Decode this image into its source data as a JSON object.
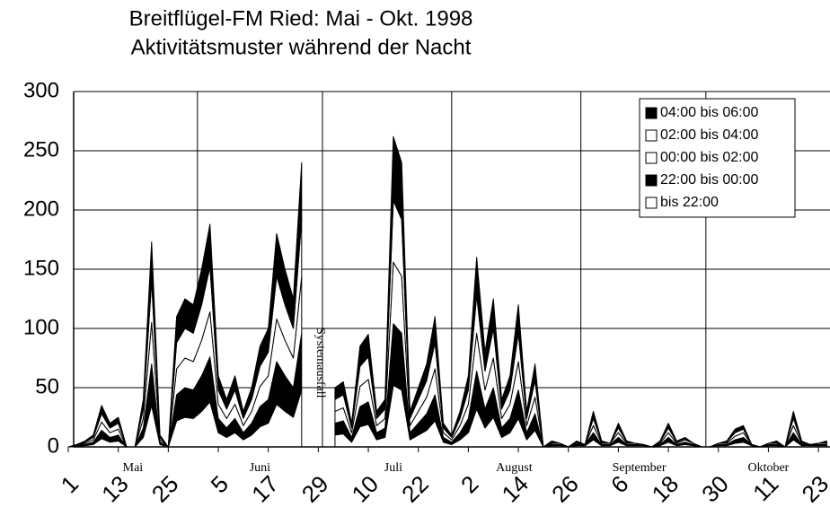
{
  "chart_data": {
    "type": "stacked_area",
    "title": "Breitflügel-FM Ried: Mai - Okt. 1998",
    "subtitle": "Aktivitätsmuster während der Nacht",
    "annotation": "Systemausfall",
    "grid": true,
    "legend": "upper right",
    "xlim": [
      0,
      183
    ],
    "ylim": [
      0,
      300
    ],
    "yticks": [
      0,
      50,
      100,
      150,
      200,
      250,
      300
    ],
    "xticks": [
      {
        "value": 0,
        "label": "1"
      },
      {
        "value": 12,
        "label": "13"
      },
      {
        "value": 24,
        "label": "25"
      },
      {
        "value": 36,
        "label": "5"
      },
      {
        "value": 48,
        "label": "17"
      },
      {
        "value": 60,
        "label": "29"
      },
      {
        "value": 72,
        "label": "10"
      },
      {
        "value": 84,
        "label": "22"
      },
      {
        "value": 96,
        "label": "2"
      },
      {
        "value": 108,
        "label": "14"
      },
      {
        "value": 120,
        "label": "26"
      },
      {
        "value": 132,
        "label": "6"
      },
      {
        "value": 144,
        "label": "18"
      },
      {
        "value": 156,
        "label": "30"
      },
      {
        "value": 168,
        "label": "11"
      },
      {
        "value": 180,
        "label": "23"
      }
    ],
    "month_labels": [
      {
        "value": 15.5,
        "label": "Mai"
      },
      {
        "value": 46,
        "label": "Juni"
      },
      {
        "value": 78,
        "label": "Juli"
      },
      {
        "value": 107,
        "label": "August"
      },
      {
        "value": 137,
        "label": "September"
      },
      {
        "value": 168,
        "label": "Oktober"
      }
    ],
    "xgrid": [
      31,
      61,
      92,
      123,
      153
    ],
    "x": [
      0,
      2,
      4,
      6,
      8,
      10,
      12,
      14,
      16,
      18,
      20,
      22,
      24,
      26,
      28,
      30,
      32,
      34,
      36,
      38,
      40,
      42,
      44,
      46,
      48,
      50,
      52,
      54,
      56,
      58,
      60,
      62,
      64,
      66,
      68,
      70,
      72,
      74,
      76,
      78,
      80,
      82,
      84,
      86,
      88,
      90,
      92,
      94,
      96,
      98,
      100,
      102,
      104,
      106,
      108,
      110,
      112,
      114,
      116,
      118,
      120,
      122,
      124,
      126,
      128,
      130,
      132,
      134,
      136,
      138,
      140,
      142,
      144,
      146,
      148,
      150,
      152,
      154,
      156,
      158,
      160,
      162,
      164,
      166,
      168,
      170,
      172,
      174,
      176,
      178,
      180,
      182
    ],
    "series": [
      {
        "name": "04:00 bis 06:00",
        "color": "#000000",
        "values": [
          0,
          2,
          1,
          2,
          7,
          4,
          5,
          0,
          0,
          8,
          33,
          2,
          0,
          22,
          25,
          24,
          30,
          36,
          12,
          8,
          12,
          6,
          10,
          17,
          20,
          36,
          30,
          25,
          48,
          null,
          null,
          null,
          10,
          11,
          4,
          17,
          19,
          6,
          8,
          54,
          48,
          6,
          10,
          14,
          22,
          4,
          2,
          6,
          12,
          32,
          16,
          25,
          8,
          12,
          24,
          6,
          14,
          0,
          1,
          0,
          0,
          1,
          0,
          6,
          1,
          0,
          4,
          1,
          0,
          0,
          0,
          1,
          4,
          1,
          1,
          0,
          0,
          0,
          0,
          1,
          3,
          3,
          0,
          0,
          0,
          1,
          0,
          6,
          1,
          0,
          0,
          1
        ]
      },
      {
        "name": "02:00 bis 04:00",
        "color": "#ffffff",
        "values": [
          0,
          0,
          1,
          2,
          7,
          4,
          5,
          0,
          0,
          8,
          35,
          2,
          0,
          22,
          25,
          24,
          30,
          38,
          12,
          8,
          12,
          6,
          10,
          17,
          20,
          36,
          30,
          25,
          48,
          null,
          null,
          null,
          10,
          11,
          4,
          17,
          19,
          6,
          8,
          52,
          48,
          6,
          10,
          14,
          22,
          4,
          2,
          6,
          12,
          32,
          16,
          25,
          8,
          12,
          24,
          6,
          14,
          0,
          1,
          0,
          0,
          1,
          0,
          6,
          1,
          0,
          4,
          1,
          0,
          0,
          0,
          1,
          4,
          1,
          1,
          0,
          0,
          0,
          0,
          1,
          3,
          3,
          0,
          0,
          0,
          1,
          0,
          6,
          1,
          0,
          0,
          1
        ]
      },
      {
        "name": "00:00 bis 02:00",
        "color": "#ffffff",
        "values": [
          0,
          0,
          1,
          2,
          7,
          4,
          5,
          0,
          0,
          8,
          35,
          2,
          0,
          22,
          25,
          24,
          30,
          38,
          12,
          8,
          12,
          6,
          10,
          17,
          20,
          36,
          30,
          25,
          48,
          null,
          null,
          null,
          10,
          11,
          4,
          17,
          19,
          6,
          8,
          52,
          48,
          6,
          10,
          14,
          22,
          4,
          2,
          6,
          12,
          32,
          16,
          25,
          8,
          12,
          24,
          6,
          14,
          0,
          1,
          1,
          0,
          1,
          0,
          6,
          1,
          1,
          4,
          1,
          1,
          0,
          0,
          1,
          4,
          1,
          2,
          1,
          0,
          0,
          1,
          1,
          3,
          4,
          0,
          0,
          1,
          1,
          0,
          6,
          1,
          0,
          1,
          1
        ]
      },
      {
        "name": "22:00 bis 00:00",
        "color": "#000000",
        "values": [
          0,
          0,
          1,
          2,
          7,
          4,
          5,
          0,
          0,
          8,
          35,
          2,
          0,
          22,
          25,
          24,
          30,
          38,
          12,
          8,
          12,
          6,
          10,
          17,
          20,
          36,
          30,
          25,
          48,
          null,
          null,
          null,
          10,
          11,
          4,
          17,
          19,
          6,
          8,
          52,
          48,
          6,
          10,
          14,
          22,
          4,
          2,
          6,
          12,
          32,
          16,
          25,
          8,
          12,
          24,
          6,
          14,
          0,
          1,
          1,
          0,
          1,
          1,
          6,
          1,
          1,
          4,
          1,
          1,
          1,
          0,
          1,
          4,
          1,
          2,
          1,
          0,
          0,
          1,
          1,
          3,
          4,
          1,
          0,
          1,
          1,
          0,
          6,
          1,
          1,
          1,
          1
        ]
      },
      {
        "name": "bis 22:00",
        "color": "#ffffff",
        "values": [
          0,
          0,
          1,
          2,
          7,
          4,
          5,
          0,
          0,
          8,
          35,
          2,
          0,
          22,
          25,
          24,
          30,
          38,
          12,
          8,
          12,
          6,
          10,
          17,
          20,
          36,
          30,
          25,
          48,
          null,
          null,
          null,
          10,
          11,
          4,
          17,
          19,
          6,
          8,
          52,
          48,
          6,
          10,
          14,
          22,
          4,
          2,
          6,
          12,
          32,
          16,
          25,
          8,
          12,
          24,
          6,
          14,
          0,
          1,
          1,
          0,
          1,
          1,
          6,
          1,
          1,
          4,
          1,
          1,
          1,
          0,
          1,
          4,
          1,
          2,
          1,
          0,
          0,
          1,
          1,
          3,
          4,
          1,
          0,
          1,
          1,
          0,
          6,
          1,
          1,
          1,
          1
        ]
      }
    ]
  }
}
